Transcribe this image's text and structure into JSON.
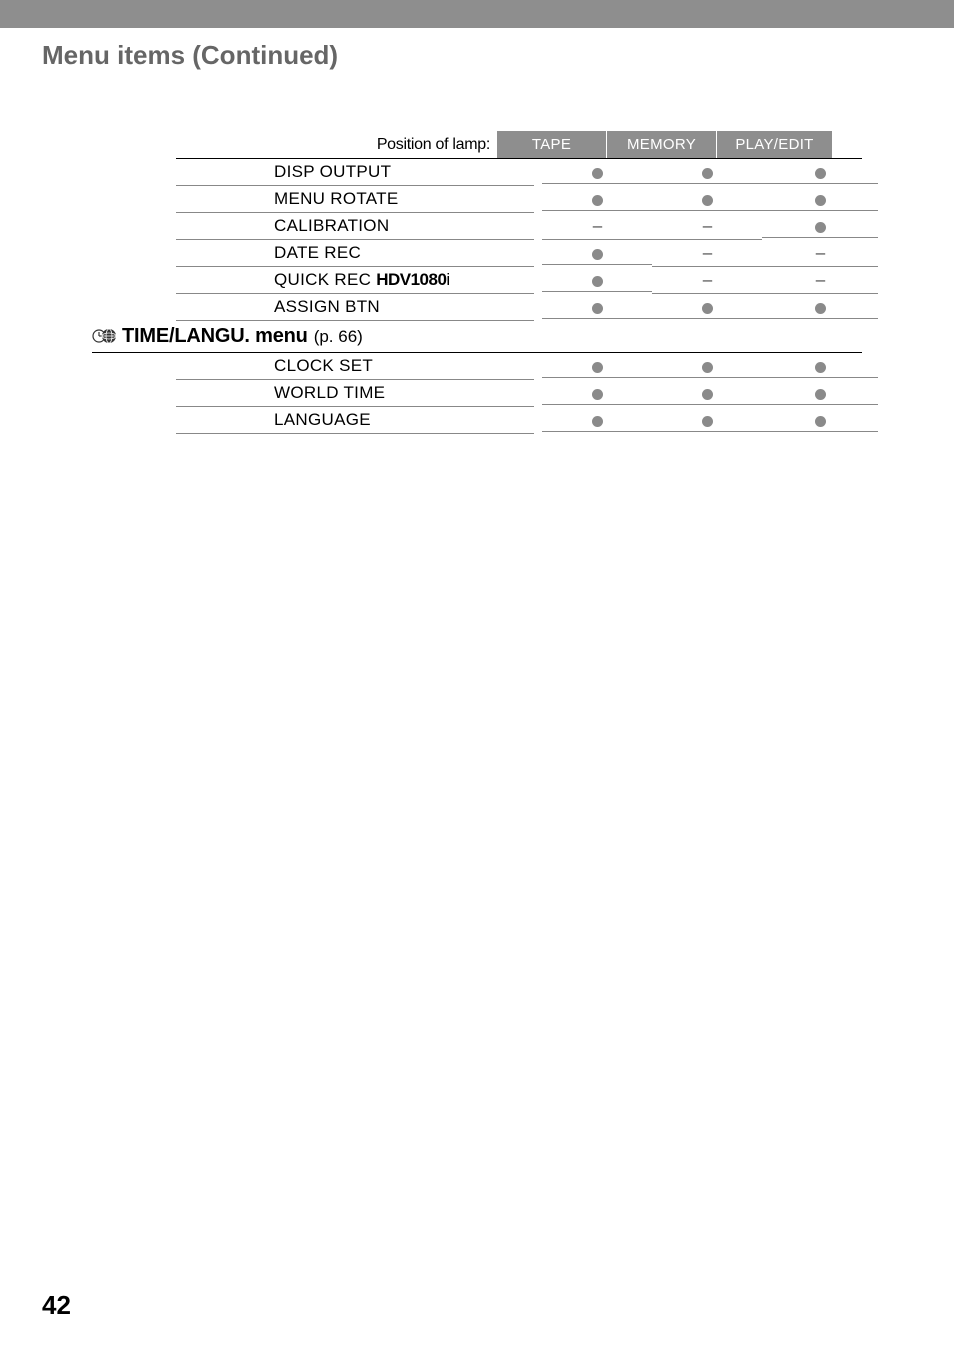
{
  "page_title": "Menu items (Continued)",
  "page_number": "42",
  "column_label": "Position of lamp:",
  "columns": [
    "TAPE",
    "MEMORY",
    "PLAY/EDIT"
  ],
  "rows_top": [
    {
      "name": "DISP OUTPUT",
      "marks": [
        "dot",
        "dot",
        "dot"
      ]
    },
    {
      "name": "MENU ROTATE",
      "marks": [
        "dot",
        "dot",
        "dot"
      ]
    },
    {
      "name": "CALIBRATION",
      "marks": [
        "dash",
        "dash",
        "dot"
      ]
    },
    {
      "name": "DATE REC",
      "marks": [
        "dot",
        "dash",
        "dash"
      ]
    },
    {
      "name": "QUICK REC",
      "badge": "HDV1080i",
      "marks": [
        "dot",
        "dash",
        "dash"
      ]
    },
    {
      "name": "ASSIGN BTN",
      "marks": [
        "dot",
        "dot",
        "dot"
      ]
    }
  ],
  "section": {
    "title": "TIME/LANGU. menu",
    "page_ref": "(p. 66)"
  },
  "rows_bottom": [
    {
      "name": "CLOCK SET",
      "marks": [
        "dot",
        "dot",
        "dot"
      ]
    },
    {
      "name": "WORLD TIME",
      "marks": [
        "dot",
        "dot",
        "dot"
      ]
    },
    {
      "name": "LANGUAGE",
      "marks": [
        "dot",
        "dot",
        "dot"
      ]
    }
  ],
  "colors": {
    "gray_bar": "#8e8e8e",
    "title_gray": "#666666",
    "dot_gray": "#8a8a8a"
  }
}
